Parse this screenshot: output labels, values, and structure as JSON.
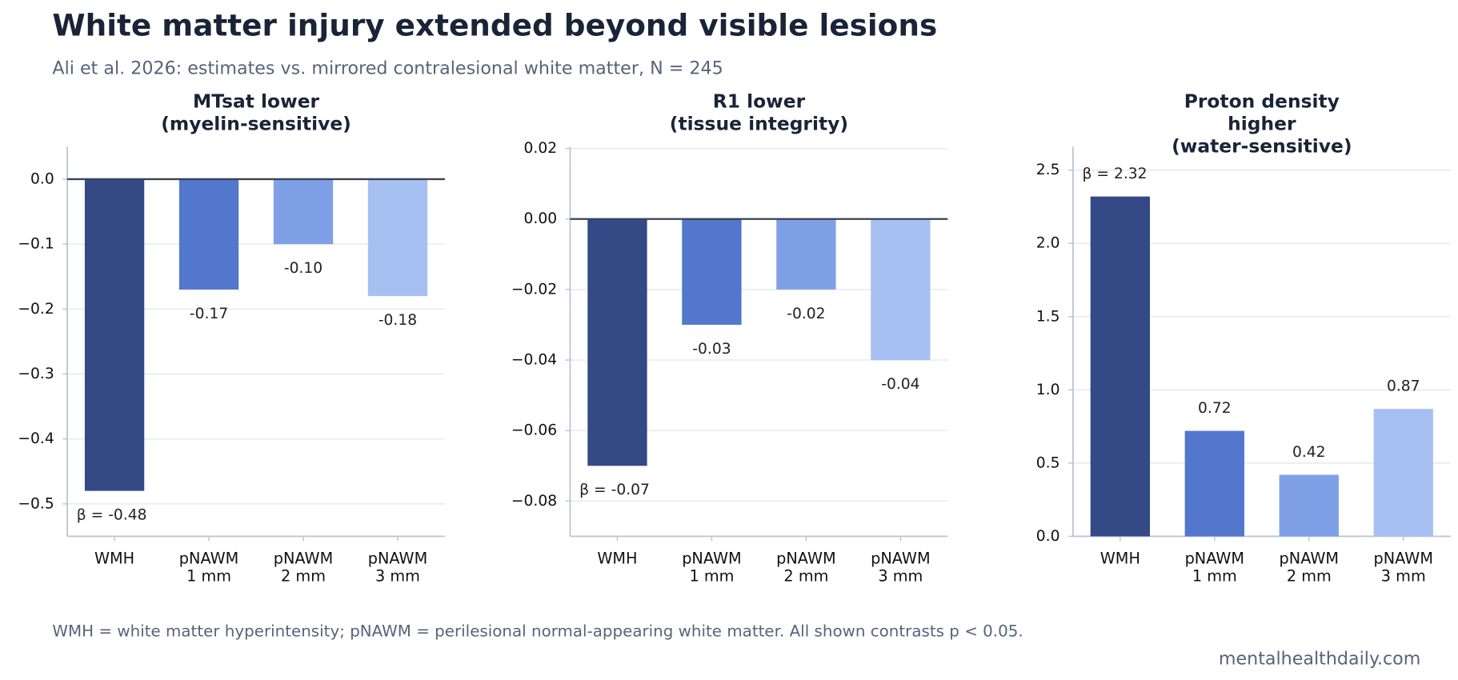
{
  "title": "White matter injury extended beyond visible lesions",
  "subtitle": "Ali et al. 2026: estimates vs. mirrored contralesional white matter, N = 245",
  "footnote": "WMH = white matter hyperintensity; pNAWM = perilesional normal-appearing white matter. All shown contrasts p < 0.05.",
  "source": "mentalhealthdaily.com",
  "chart_data": [
    {
      "type": "bar",
      "title": "MTsat lower\n(myelin-sensitive)",
      "categories": [
        "WMH",
        "pNAWM\n1 mm",
        "pNAWM\n2 mm",
        "pNAWM\n3 mm"
      ],
      "values": [
        -0.48,
        -0.17,
        -0.1,
        -0.18
      ],
      "value_labels": [
        "β = -0.48",
        "-0.17",
        "-0.10",
        "-0.18"
      ],
      "colors": [
        "#334a87",
        "#5277cc",
        "#7fa0e6",
        "#a7c0f2"
      ],
      "ylim": [
        -0.55,
        0.05
      ],
      "yticks": [
        {
          "value": 0,
          "label": "0.0"
        },
        {
          "value": -0.1,
          "label": "−0.1"
        },
        {
          "value": -0.2,
          "label": "−0.2"
        },
        {
          "value": -0.3,
          "label": "−0.3"
        },
        {
          "value": -0.4,
          "label": "−0.4"
        },
        {
          "value": -0.5,
          "label": "−0.5"
        }
      ],
      "grid": true,
      "zero_line": true
    },
    {
      "type": "bar",
      "title": "R1 lower\n(tissue integrity)",
      "categories": [
        "WMH",
        "pNAWM\n1 mm",
        "pNAWM\n2 mm",
        "pNAWM\n3 mm"
      ],
      "values": [
        -0.07,
        -0.03,
        -0.02,
        -0.04
      ],
      "value_labels": [
        "β = -0.07",
        "-0.03",
        "-0.02",
        "-0.04"
      ],
      "colors": [
        "#334a87",
        "#5277cc",
        "#7fa0e6",
        "#a7c0f2"
      ],
      "ylim": [
        -0.09,
        0.0205
      ],
      "yticks": [
        {
          "value": 0.02,
          "label": "0.02"
        },
        {
          "value": 0,
          "label": "0.00"
        },
        {
          "value": -0.02,
          "label": "−0.02"
        },
        {
          "value": -0.04,
          "label": "−0.04"
        },
        {
          "value": -0.06,
          "label": "−0.06"
        },
        {
          "value": -0.08,
          "label": "−0.08"
        }
      ],
      "grid": true,
      "zero_line": true
    },
    {
      "type": "bar",
      "title": "Proton density higher\n(water-sensitive)",
      "categories": [
        "WMH",
        "pNAWM\n1 mm",
        "pNAWM\n2 mm",
        "pNAWM\n3 mm"
      ],
      "values": [
        2.32,
        0.72,
        0.42,
        0.87
      ],
      "value_labels": [
        "β = 2.32",
        "0.72",
        "0.42",
        "0.87"
      ],
      "colors": [
        "#334a87",
        "#5277cc",
        "#7fa0e6",
        "#a7c0f2"
      ],
      "ylim": [
        0,
        2.66
      ],
      "yticks": [
        {
          "value": 0,
          "label": "0.0"
        },
        0.5,
        {
          "value": 1,
          "label": "1.0"
        },
        1.5,
        {
          "value": 2,
          "label": "2.0"
        },
        2.5
      ],
      "grid": true,
      "zero_line": false
    }
  ]
}
